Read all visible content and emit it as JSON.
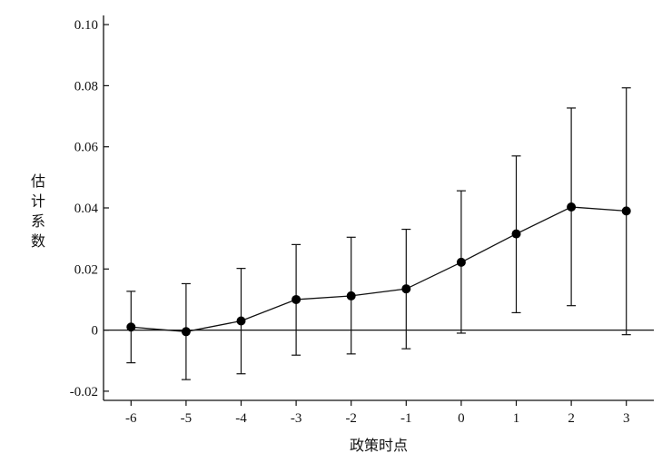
{
  "chart_data": {
    "type": "scatter",
    "title": "",
    "xlabel": "政策时点",
    "ylabel": "估计系数",
    "x": [
      -6,
      -5,
      -4,
      -3,
      -2,
      -1,
      0,
      1,
      2,
      3
    ],
    "x_tick_labels": [
      "-6",
      "-5",
      "-4",
      "-3",
      "-2",
      "-1",
      "0",
      "1",
      "2",
      "3"
    ],
    "y_ticks": [
      -0.02,
      0,
      0.02,
      0.04,
      0.06,
      0.08,
      0.1
    ],
    "y_tick_labels": [
      "-0.02",
      "0",
      "0.02",
      "0.04",
      "0.06",
      "0.08",
      "0.10"
    ],
    "ylim": [
      -0.023,
      0.103
    ],
    "xlim": [
      -6.5,
      3.5
    ],
    "series": [
      {
        "estimate": [
          0.001,
          -0.0005,
          0.003,
          0.01,
          0.0112,
          0.0135,
          0.0222,
          0.0315,
          0.0403,
          0.039
        ],
        "ci_upper": [
          0.0127,
          0.0152,
          0.0202,
          0.028,
          0.0304,
          0.033,
          0.0456,
          0.057,
          0.0727,
          0.0793
        ],
        "ci_lower": [
          -0.0107,
          -0.0162,
          -0.0143,
          -0.0082,
          -0.0078,
          -0.0061,
          -0.001,
          0.0057,
          0.008,
          -0.0015
        ]
      }
    ],
    "reference_line_y": 0,
    "grid": false,
    "colors": {
      "line": "#111111",
      "marker": "#000000",
      "axis": "#111111"
    }
  }
}
